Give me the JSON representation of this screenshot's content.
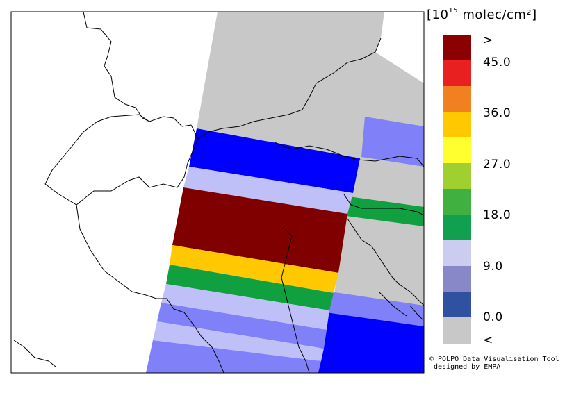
{
  "legend": {
    "units_pre": "[10",
    "units_exp": "15",
    "units_post": " molec/cm²]",
    "ticks": [
      ">",
      "45.0",
      "36.0",
      "27.0",
      "18.0",
      "9.0",
      "0.0",
      "<"
    ],
    "colors": [
      "#8b0000",
      "#e82020",
      "#f08020",
      "#ffc800",
      "#ffff30",
      "#a0d030",
      "#40b040",
      "#10a050",
      "#ccccf0",
      "#8888c8",
      "#3050a0",
      "#c8c8c8"
    ]
  },
  "credit": {
    "line1": "© POLPO Data Visualisation Tool",
    "line2": "designed by EMPA"
  },
  "map": {
    "background": "#ffffff",
    "coastline_color": "#000000",
    "swath_colors": {
      "no_data": "#c8c8c8",
      "blue": "#0000ff",
      "lavender": "#c0c0f8",
      "dark_red": "#800000",
      "orange": "#ffc800",
      "green": "#10a040",
      "periwinkle": "#8080f8"
    }
  }
}
